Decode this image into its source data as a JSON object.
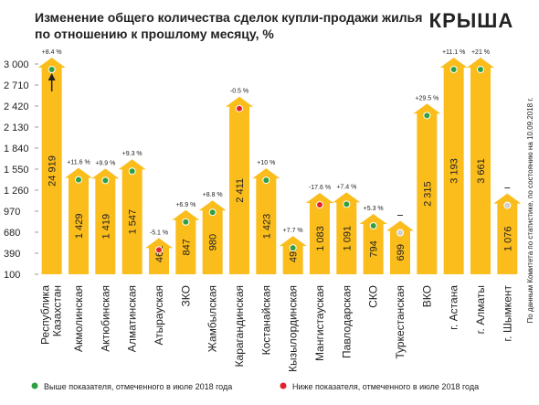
{
  "chart_data": {
    "type": "bar",
    "title": [
      "Изменение общего количества сделок купли-продажи жилья",
      "по отношению к прошлому месяцу, %"
    ],
    "logo": "КРЫША",
    "source": "По данным Комитета по статистике, по состоянию на 10.09.2018 г.",
    "categories": [
      "Республика Казахстан",
      "Акмолинская",
      "Актюбинская",
      "Алматинская",
      "Атырауская",
      "ЗКО",
      "Жамбылская",
      "Карагандинская",
      "Костанайская",
      "Кызылординская",
      "Мангистауская",
      "Павлодарская",
      "СКО",
      "Туркестанская",
      "ВКО",
      "г. Астана",
      "г. Алматы",
      "г. Шымкент"
    ],
    "values": [
      24919,
      1429,
      1419,
      1547,
      461,
      847,
      980,
      2411,
      1423,
      490,
      1083,
      1091,
      794,
      699,
      2315,
      3193,
      3661,
      1076
    ],
    "value_labels": [
      "24 919",
      "1 429",
      "1 419",
      "1 547",
      "461",
      "847",
      "980",
      "2 411",
      "1 423",
      "490",
      "1 083",
      "1 091",
      "794",
      "699",
      "2 315",
      "3 193",
      "3 661",
      "1 076"
    ],
    "changes": [
      "+8.4 %",
      "+11.6 %",
      "+9.9 %",
      "+9.3 %",
      "-5.1 %",
      "+6.9 %",
      "+8.8 %",
      "-0.5 %",
      "+10 %",
      "+7.7 %",
      "-17.6 %",
      "+7.4 %",
      "+5.3 %",
      null,
      "+29.5 %",
      "+11.1 %",
      "+21 %",
      null
    ],
    "dot_colors": [
      "#2ea043",
      "#2ea043",
      "#2ea043",
      "#2ea043",
      "#e5202a",
      "#2ea043",
      "#2ea043",
      "#e5202a",
      "#2ea043",
      "#2ea043",
      "#e5202a",
      "#2ea043",
      "#2ea043",
      "#cfcfcf",
      "#2ea043",
      "#2ea043",
      "#2ea043",
      "#cfcfcf"
    ],
    "color": "#fbbd1c",
    "ylim": [
      100,
      3000
    ],
    "yticks": [
      100,
      390,
      680,
      970,
      {
        "value": 1260,
        "label": "1 260"
      },
      {
        "value": 1550,
        "label": "1 550"
      },
      {
        "value": 1840,
        "label": "1 840"
      },
      {
        "value": 2130,
        "label": "2 130"
      },
      {
        "value": 2420,
        "label": "2 420"
      },
      {
        "value": 2710,
        "label": "2 710"
      },
      {
        "value": 3000,
        "label": "3 000"
      }
    ],
    "legend": [
      {
        "name": "Выше показателя, отмеченного в июле 2018 года",
        "color": "#2ea043"
      },
      {
        "name": "Ниже показателя, отмеченного в июле 2018 года",
        "color": "#e5202a"
      }
    ]
  }
}
